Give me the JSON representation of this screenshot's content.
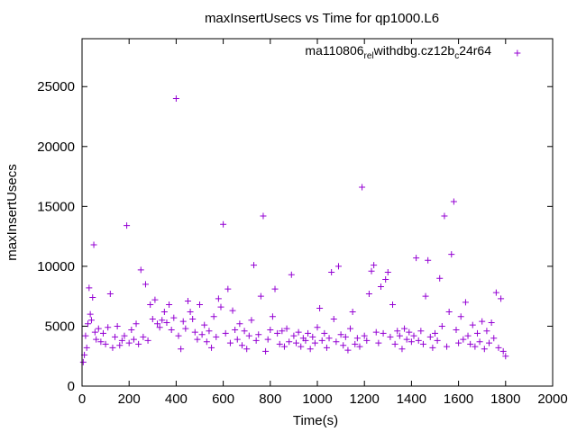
{
  "chart_data": {
    "type": "scatter",
    "title": "maxInsertUsecs vs Time for qp1000.L6",
    "xlabel": "Time(s)",
    "ylabel": "maxInsertUsecs",
    "xlim": [
      0,
      2000
    ],
    "ylim": [
      0,
      29000
    ],
    "xticks": [
      0,
      200,
      400,
      600,
      800,
      1000,
      1200,
      1400,
      1600,
      1800,
      2000
    ],
    "yticks": [
      0,
      5000,
      10000,
      15000,
      20000,
      25000
    ],
    "grid": false,
    "legend_position": "top-right",
    "marker": "plus",
    "series": [
      {
        "legend": {
          "parts": [
            "ma110806",
            "rel",
            "withdbg.cz12b",
            "c",
            "24r64"
          ],
          "subscript_index": [
            1,
            3
          ]
        },
        "color": "#9400d3",
        "points": [
          [
            5,
            2000
          ],
          [
            10,
            2600
          ],
          [
            15,
            4200
          ],
          [
            20,
            3200
          ],
          [
            25,
            5200
          ],
          [
            30,
            8200
          ],
          [
            35,
            6000
          ],
          [
            40,
            5500
          ],
          [
            45,
            7400
          ],
          [
            50,
            11800
          ],
          [
            55,
            4500
          ],
          [
            60,
            3900
          ],
          [
            70,
            4800
          ],
          [
            80,
            3700
          ],
          [
            90,
            4400
          ],
          [
            100,
            3500
          ],
          [
            110,
            4900
          ],
          [
            120,
            7700
          ],
          [
            130,
            3200
          ],
          [
            140,
            4100
          ],
          [
            150,
            5000
          ],
          [
            160,
            3400
          ],
          [
            170,
            3800
          ],
          [
            180,
            4200
          ],
          [
            190,
            13400
          ],
          [
            200,
            3600
          ],
          [
            210,
            4700
          ],
          [
            220,
            3900
          ],
          [
            230,
            5200
          ],
          [
            240,
            3500
          ],
          [
            250,
            9700
          ],
          [
            260,
            4100
          ],
          [
            270,
            8500
          ],
          [
            280,
            3800
          ],
          [
            290,
            6800
          ],
          [
            300,
            5600
          ],
          [
            310,
            7200
          ],
          [
            320,
            5200
          ],
          [
            330,
            4900
          ],
          [
            340,
            5500
          ],
          [
            350,
            6200
          ],
          [
            360,
            5300
          ],
          [
            370,
            6800
          ],
          [
            380,
            4700
          ],
          [
            390,
            5700
          ],
          [
            400,
            24000
          ],
          [
            410,
            4200
          ],
          [
            420,
            3100
          ],
          [
            430,
            5400
          ],
          [
            440,
            4800
          ],
          [
            450,
            7100
          ],
          [
            460,
            6200
          ],
          [
            470,
            5600
          ],
          [
            480,
            4500
          ],
          [
            490,
            3900
          ],
          [
            500,
            6800
          ],
          [
            510,
            4300
          ],
          [
            520,
            5100
          ],
          [
            530,
            3700
          ],
          [
            540,
            4600
          ],
          [
            550,
            3200
          ],
          [
            560,
            5800
          ],
          [
            570,
            4100
          ],
          [
            580,
            7300
          ],
          [
            590,
            6600
          ],
          [
            600,
            13500
          ],
          [
            610,
            4400
          ],
          [
            620,
            8100
          ],
          [
            630,
            3600
          ],
          [
            640,
            6300
          ],
          [
            650,
            4700
          ],
          [
            660,
            3900
          ],
          [
            670,
            5200
          ],
          [
            680,
            3400
          ],
          [
            690,
            4600
          ],
          [
            700,
            3100
          ],
          [
            710,
            4200
          ],
          [
            720,
            5500
          ],
          [
            730,
            10100
          ],
          [
            740,
            3800
          ],
          [
            750,
            4300
          ],
          [
            760,
            7500
          ],
          [
            770,
            14200
          ],
          [
            780,
            2900
          ],
          [
            790,
            3900
          ],
          [
            800,
            4700
          ],
          [
            810,
            5800
          ],
          [
            820,
            8100
          ],
          [
            830,
            4400
          ],
          [
            840,
            3500
          ],
          [
            850,
            4600
          ],
          [
            860,
            3300
          ],
          [
            870,
            4800
          ],
          [
            880,
            3700
          ],
          [
            890,
            9300
          ],
          [
            900,
            4200
          ],
          [
            910,
            3600
          ],
          [
            920,
            4500
          ],
          [
            930,
            3300
          ],
          [
            940,
            4000
          ],
          [
            950,
            3800
          ],
          [
            960,
            4400
          ],
          [
            970,
            3100
          ],
          [
            980,
            4100
          ],
          [
            990,
            3600
          ],
          [
            1000,
            4900
          ],
          [
            1010,
            6500
          ],
          [
            1020,
            3800
          ],
          [
            1030,
            4400
          ],
          [
            1040,
            3200
          ],
          [
            1050,
            4000
          ],
          [
            1060,
            9500
          ],
          [
            1070,
            5600
          ],
          [
            1080,
            3700
          ],
          [
            1090,
            10000
          ],
          [
            1100,
            4300
          ],
          [
            1110,
            3400
          ],
          [
            1120,
            4100
          ],
          [
            1130,
            3000
          ],
          [
            1140,
            4800
          ],
          [
            1150,
            6200
          ],
          [
            1160,
            3500
          ],
          [
            1170,
            4000
          ],
          [
            1180,
            3300
          ],
          [
            1190,
            16600
          ],
          [
            1200,
            4200
          ],
          [
            1210,
            3800
          ],
          [
            1220,
            7700
          ],
          [
            1230,
            9600
          ],
          [
            1240,
            10100
          ],
          [
            1250,
            4500
          ],
          [
            1260,
            3600
          ],
          [
            1270,
            8300
          ],
          [
            1280,
            4400
          ],
          [
            1290,
            8900
          ],
          [
            1300,
            9500
          ],
          [
            1310,
            4100
          ],
          [
            1320,
            6800
          ],
          [
            1330,
            3500
          ],
          [
            1340,
            4600
          ],
          [
            1350,
            4200
          ],
          [
            1360,
            3100
          ],
          [
            1370,
            4800
          ],
          [
            1380,
            3900
          ],
          [
            1390,
            4500
          ],
          [
            1400,
            3700
          ],
          [
            1410,
            4200
          ],
          [
            1420,
            10700
          ],
          [
            1430,
            3800
          ],
          [
            1440,
            4600
          ],
          [
            1450,
            3500
          ],
          [
            1460,
            7500
          ],
          [
            1470,
            10500
          ],
          [
            1480,
            4100
          ],
          [
            1490,
            3200
          ],
          [
            1500,
            4400
          ],
          [
            1510,
            3800
          ],
          [
            1520,
            9000
          ],
          [
            1530,
            5000
          ],
          [
            1540,
            14200
          ],
          [
            1550,
            3300
          ],
          [
            1560,
            6200
          ],
          [
            1570,
            11000
          ],
          [
            1580,
            15400
          ],
          [
            1590,
            4700
          ],
          [
            1600,
            3600
          ],
          [
            1610,
            5800
          ],
          [
            1620,
            3900
          ],
          [
            1630,
            7000
          ],
          [
            1640,
            4200
          ],
          [
            1650,
            3500
          ],
          [
            1660,
            5100
          ],
          [
            1670,
            3300
          ],
          [
            1680,
            4400
          ],
          [
            1690,
            3700
          ],
          [
            1700,
            5400
          ],
          [
            1710,
            3100
          ],
          [
            1720,
            4600
          ],
          [
            1730,
            3600
          ],
          [
            1740,
            5300
          ],
          [
            1750,
            4000
          ],
          [
            1760,
            7800
          ],
          [
            1770,
            3200
          ],
          [
            1780,
            7300
          ],
          [
            1790,
            2900
          ],
          [
            1800,
            2500
          ]
        ]
      },
      {
        "legend": null,
        "color": "#9400d3",
        "points": [
          [
            1850,
            27800
          ]
        ]
      }
    ]
  }
}
